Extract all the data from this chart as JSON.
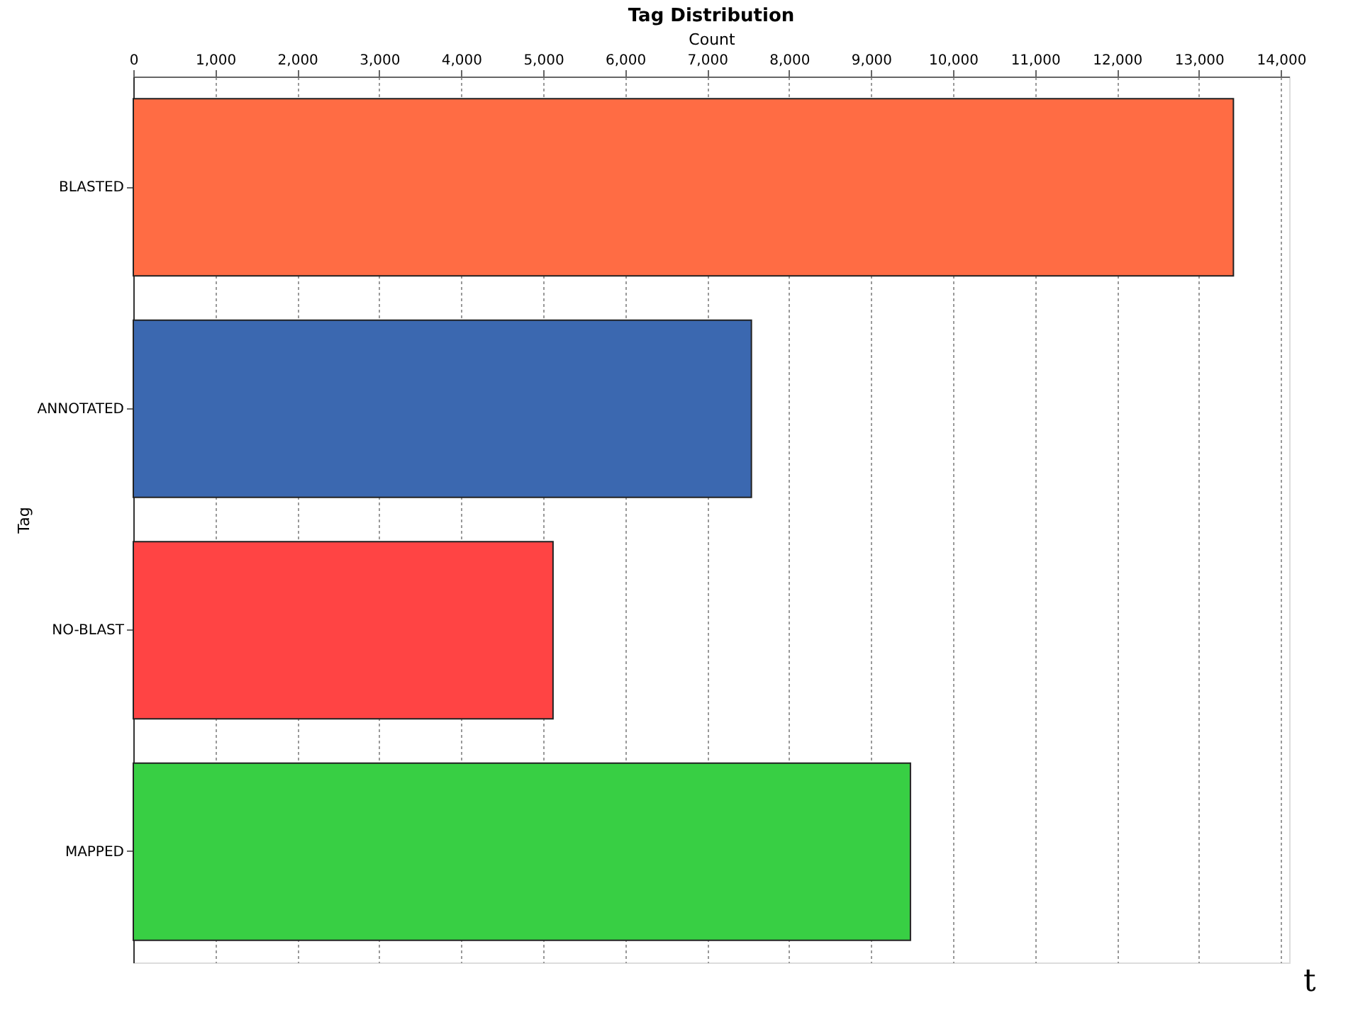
{
  "chart_data": {
    "type": "bar",
    "orientation": "horizontal",
    "title": "Tag Distribution",
    "xlabel": "Count",
    "ylabel": "Tag",
    "categories": [
      "BLASTED",
      "ANNOTATED",
      "NO-BLAST",
      "MAPPED"
    ],
    "values": [
      13420,
      7540,
      5120,
      9480
    ],
    "colors": [
      "#ff6c44",
      "#3b68b0",
      "#ff4444",
      "#38cf44"
    ],
    "xlim": [
      0,
      14100
    ],
    "xticks": [
      {
        "value": 0,
        "label": "0"
      },
      {
        "value": 1000,
        "label": "1,000"
      },
      {
        "value": 2000,
        "label": "2,000"
      },
      {
        "value": 3000,
        "label": "3,000"
      },
      {
        "value": 4000,
        "label": "4,000"
      },
      {
        "value": 5000,
        "label": "5,000"
      },
      {
        "value": 6000,
        "label": "6,000"
      },
      {
        "value": 7000,
        "label": "7,000"
      },
      {
        "value": 8000,
        "label": "8,000"
      },
      {
        "value": 9000,
        "label": "9,000"
      },
      {
        "value": 10000,
        "label": "10,000"
      },
      {
        "value": 11000,
        "label": "11,000"
      },
      {
        "value": 12000,
        "label": "12,000"
      },
      {
        "value": 13000,
        "label": "13,000"
      },
      {
        "value": 14000,
        "label": "14,000"
      }
    ],
    "grid": "x",
    "legend": false,
    "annotations": [
      "t"
    ]
  }
}
